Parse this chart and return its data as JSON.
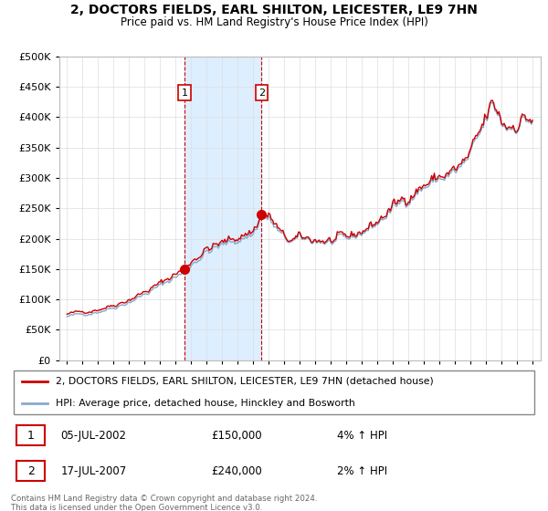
{
  "title": "2, DOCTORS FIELDS, EARL SHILTON, LEICESTER, LE9 7HN",
  "subtitle": "Price paid vs. HM Land Registry's House Price Index (HPI)",
  "legend_line1": "2, DOCTORS FIELDS, EARL SHILTON, LEICESTER, LE9 7HN (detached house)",
  "legend_line2": "HPI: Average price, detached house, Hinckley and Bosworth",
  "sale1_date": "05-JUL-2002",
  "sale1_price": "£150,000",
  "sale1_hpi": "4% ↑ HPI",
  "sale2_date": "17-JUL-2007",
  "sale2_price": "£240,000",
  "sale2_hpi": "2% ↑ HPI",
  "copyright": "Contains HM Land Registry data © Crown copyright and database right 2024.\nThis data is licensed under the Open Government Licence v3.0.",
  "line_color_red": "#cc0000",
  "line_color_blue": "#88aacc",
  "shading_color": "#ddeeff",
  "sale1_x": 2002.58,
  "sale2_x": 2007.54,
  "sale1_y": 150000,
  "sale2_y": 240000,
  "ylim": [
    0,
    500000
  ],
  "yticks": [
    0,
    50000,
    100000,
    150000,
    200000,
    250000,
    300000,
    350000,
    400000,
    450000,
    500000
  ],
  "xlim": [
    1994.5,
    2025.5
  ],
  "xticks": [
    1995,
    1996,
    1997,
    1998,
    1999,
    2000,
    2001,
    2002,
    2003,
    2004,
    2005,
    2006,
    2007,
    2008,
    2009,
    2010,
    2011,
    2012,
    2013,
    2014,
    2015,
    2016,
    2017,
    2018,
    2019,
    2020,
    2021,
    2022,
    2023,
    2024,
    2025
  ]
}
